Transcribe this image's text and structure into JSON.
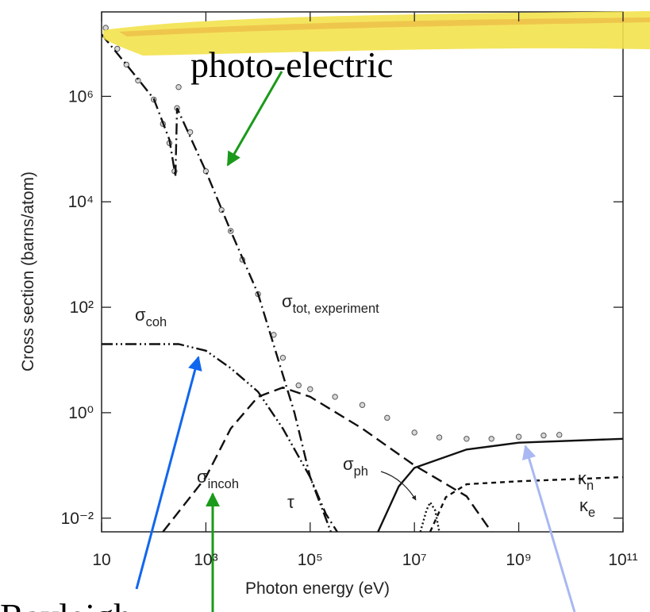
{
  "chart_data": {
    "type": "line",
    "xlabel": "Photon energy (eV)",
    "ylabel": "Cross section (barns/atom)",
    "xscale": "log",
    "yscale": "log",
    "xlim": [
      10,
      100000000000
    ],
    "ylim": [
      0.0055,
      40000000
    ],
    "xticks": [
      10,
      {
        "value": 1000,
        "label": "10³"
      },
      {
        "value": 100000,
        "label": "10⁵"
      },
      {
        "value": 10000000,
        "label": "10⁷"
      },
      {
        "value": 1000000000,
        "label": "10⁹"
      },
      {
        "value": 100000000000,
        "label": "10¹¹"
      }
    ],
    "yticks": [
      {
        "value": 0.01,
        "label": "10⁻²"
      },
      {
        "value": 1,
        "label": "10⁰"
      },
      {
        "value": 100,
        "label": "10²"
      },
      {
        "value": 10000,
        "label": "10⁴"
      },
      {
        "value": 1000000,
        "label": "10⁶"
      }
    ],
    "series": [
      {
        "style": "markers",
        "color": "#555555",
        "x": [
          12,
          20,
          30,
          50,
          100,
          150,
          200,
          250,
          280,
          300,
          500,
          1000,
          2000,
          3000,
          5000,
          10000,
          20000,
          30000,
          60000,
          100000,
          300000,
          1000000,
          3000000,
          10000000,
          30000000,
          100000000,
          300000000,
          1000000000,
          3000000000,
          6000000000
        ],
        "values": [
          20000000,
          8000000,
          4000000,
          2000000,
          870000,
          300000,
          130000,
          38000,
          600000,
          1500000,
          210000,
          38000,
          7000,
          2800,
          800,
          178,
          30,
          11,
          3.3,
          2.8,
          2,
          1.4,
          0.8,
          0.42,
          0.34,
          0.32,
          0.32,
          0.35,
          0.37,
          0.38
        ]
      },
      {
        "style": "dashdot",
        "color": "#111111",
        "x": [
          10,
          30,
          100,
          200,
          250,
          260,
          280,
          1000,
          3000,
          10000,
          50000,
          100000,
          200000,
          330000
        ],
        "values": [
          15000000,
          4000000,
          900000,
          150000,
          40000,
          30000,
          600000,
          38000,
          2800,
          180,
          1,
          0.06,
          0.012,
          0.0055
        ]
      },
      {
        "style": "dashdotdot",
        "color": "#111111",
        "x": [
          10,
          300,
          1000,
          3000,
          10000,
          30000,
          100000,
          250000
        ],
        "values": [
          20,
          20,
          15,
          7,
          2.5,
          0.5,
          0.06,
          0.0055
        ]
      },
      {
        "style": "dashed",
        "color": "#111111",
        "x": [
          150,
          1000,
          3000,
          10000,
          30000,
          100000,
          1000000,
          10000000,
          100000000,
          300000000
        ],
        "values": [
          0.0055,
          0.06,
          0.5,
          2,
          3,
          2,
          0.5,
          0.1,
          0.026,
          0.0055
        ]
      },
      {
        "style": "solid",
        "color": "#111111",
        "x": [
          2000000,
          5000000,
          10000000,
          100000000,
          1000000000,
          100000000000
        ],
        "values": [
          0.0055,
          0.04,
          0.09,
          0.2,
          0.27,
          0.32
        ]
      },
      {
        "style": "shortdash",
        "color": "#111111",
        "x": [
          20000000,
          40000000,
          100000000,
          1000000000,
          100000000000
        ],
        "values": [
          0.0055,
          0.025,
          0.044,
          0.05,
          0.06
        ]
      },
      {
        "style": "dotted",
        "color": "#111111",
        "x": [
          13000000,
          17000000,
          20000000,
          25000000,
          30000000
        ],
        "values": [
          0.0055,
          0.014,
          0.02,
          0.014,
          0.0055
        ]
      }
    ],
    "annotations": [
      {
        "text": "photo-electric"
      },
      {
        "text": "Rayleigh"
      },
      {
        "text": "σ",
        "sub": "coh"
      },
      {
        "text": "σ",
        "sub": "tot, experiment"
      },
      {
        "text": "σ",
        "sub": "incoh"
      },
      {
        "text": "τ"
      },
      {
        "text": "σ",
        "sub": "ph"
      },
      {
        "text": "κ",
        "sub": "n"
      },
      {
        "text": "κ",
        "sub": "e"
      }
    ]
  }
}
